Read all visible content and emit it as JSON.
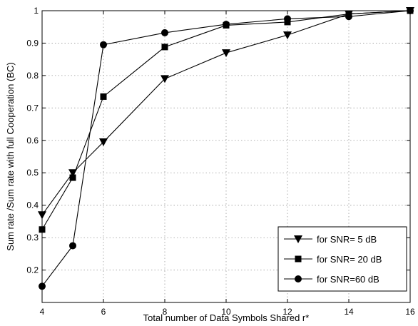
{
  "chart_data": {
    "type": "line",
    "xlabel": "Total number of Data Symbols Shared r*",
    "ylabel": "Sum rate /Sum rate with full Cooperation (BC)",
    "xlim": [
      4,
      16
    ],
    "ylim": [
      0.1,
      1.0
    ],
    "x_ticks": [
      4,
      6,
      8,
      10,
      12,
      14,
      16
    ],
    "y_ticks": [
      0.2,
      0.3,
      0.4,
      0.5,
      0.6,
      0.7,
      0.8,
      0.9,
      1
    ],
    "x_tick_labels": [
      "4",
      "6",
      "8",
      "10",
      "12",
      "14",
      "16"
    ],
    "y_tick_labels": [
      "0.2",
      "0.3",
      "0.4",
      "0.5",
      "0.6",
      "0.7",
      "0.8",
      "0.9",
      "1"
    ],
    "grid": true,
    "legend_position": "bottom-right",
    "series": [
      {
        "name": "for SNR= 5 dB",
        "marker": "triangle-down",
        "x": [
          4,
          5,
          6,
          8,
          10,
          12,
          14,
          16
        ],
        "y": [
          0.37,
          0.5,
          0.595,
          0.79,
          0.87,
          0.925,
          0.99,
          1.0
        ]
      },
      {
        "name": "for SNR= 20 dB",
        "marker": "square",
        "x": [
          4,
          5,
          6,
          8,
          10,
          12,
          14,
          16
        ],
        "y": [
          0.325,
          0.485,
          0.735,
          0.888,
          0.955,
          0.965,
          0.99,
          1.0
        ]
      },
      {
        "name": "for SNR=60 dB",
        "marker": "circle",
        "x": [
          4,
          5,
          6,
          8,
          10,
          12,
          14,
          16
        ],
        "y": [
          0.15,
          0.275,
          0.895,
          0.932,
          0.958,
          0.975,
          0.982,
          1.0
        ]
      }
    ],
    "colors": {
      "line": "#000000",
      "grid": "#9a9a9a",
      "background": "#ffffff"
    }
  }
}
